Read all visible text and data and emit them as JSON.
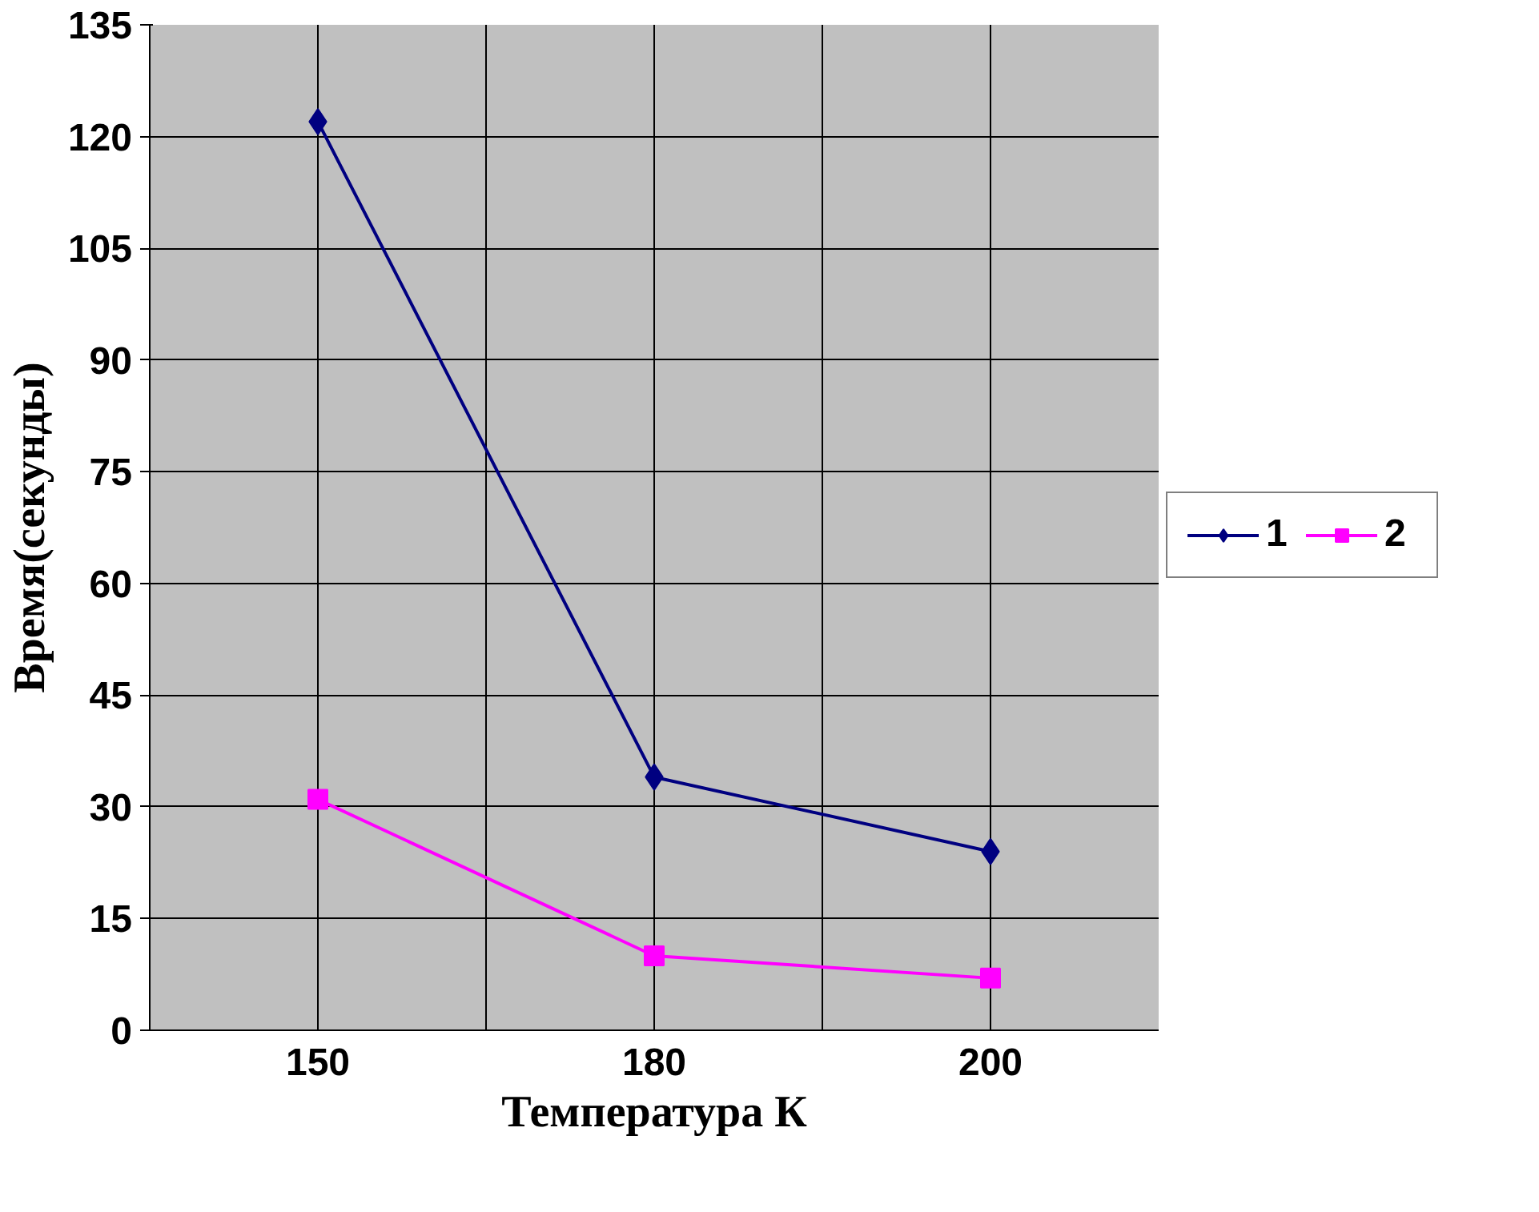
{
  "chart_data": {
    "type": "line",
    "xlabel": "Температура К",
    "ylabel": "Время(секунды)",
    "categories": [
      "150",
      "180",
      "200"
    ],
    "series": [
      {
        "name": "1",
        "color": "#000080",
        "marker": "diamond",
        "values": [
          122,
          34,
          24
        ]
      },
      {
        "name": "2",
        "color": "#ff00ff",
        "marker": "square",
        "values": [
          31,
          10,
          7
        ]
      }
    ],
    "ylim": [
      0,
      135
    ],
    "yticks": [
      0,
      15,
      30,
      45,
      60,
      75,
      90,
      105,
      120,
      135
    ],
    "grid": true,
    "legend": "right",
    "line_style": "solid"
  }
}
